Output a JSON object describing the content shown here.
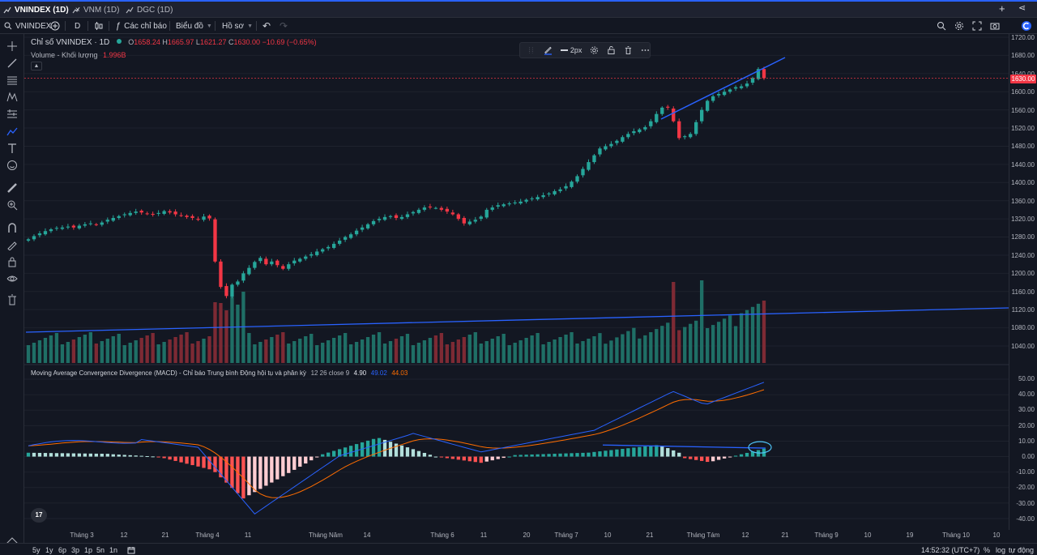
{
  "tabs": [
    {
      "label": "VNINDEX (1D)",
      "active": true
    },
    {
      "label": "VNM (1D)",
      "active": false
    },
    {
      "label": "DGC (1D)",
      "active": false
    }
  ],
  "toolbar": {
    "symbol": "VNINDEX",
    "interval": "D",
    "indicators_label": "Các chỉ báo",
    "chart_label": "Biểu đồ",
    "profile_label": "Hồ sơ"
  },
  "legend": {
    "title": "Chỉ số VNINDEX · 1D",
    "open_key": "O",
    "open": "1658.24",
    "high_key": "H",
    "high": "1665.97",
    "low_key": "L",
    "low": "1621.27",
    "close_key": "C",
    "close": "1630.00",
    "change": "−10.69 (−0.65%)",
    "volume_label": "Volume - Khối lượng",
    "volume_value": "1.996B"
  },
  "macd": {
    "label": "Moving Average Convergence Divergence (MACD) - Chỉ báo Trung bình Động hội tụ và phân kỳ",
    "params": "12 26 close 9",
    "hist": "4.90",
    "macd": "49.02",
    "signal": "44.03"
  },
  "floatbar": {
    "width_label": "2px"
  },
  "price_axis": {
    "ticks": [
      "1720.00",
      "1680.00",
      "1640.00",
      "1600.00",
      "1560.00",
      "1520.00",
      "1480.00",
      "1440.00",
      "1400.00",
      "1360.00",
      "1320.00",
      "1280.00",
      "1240.00",
      "1200.00",
      "1160.00",
      "1120.00",
      "1080.00",
      "1040.00"
    ],
    "last_price": "1630.00"
  },
  "macd_axis": {
    "ticks": [
      "50.00",
      "40.00",
      "30.00",
      "20.00",
      "10.00",
      "0.00",
      "-10.00",
      "-20.00",
      "-30.00",
      "-40.00"
    ]
  },
  "time_axis": {
    "ticks": [
      "Tháng 3",
      "12",
      "21",
      "Tháng 4",
      "11",
      "Tháng Năm",
      "14",
      "Tháng 6",
      "11",
      "20",
      "Tháng 7",
      "10",
      "21",
      "Tháng Tám",
      "12",
      "21",
      "Tháng 9",
      "10",
      "19",
      "Tháng 10",
      "10"
    ]
  },
  "bottom": {
    "ranges": [
      "5y",
      "1y",
      "6p",
      "3p",
      "1p",
      "5n",
      "1n"
    ],
    "clock": "14:52:32 (UTC+7)",
    "percent": "%",
    "log": "log",
    "auto": "tự động"
  },
  "colors": {
    "up": "#26a69a",
    "down": "#f23645",
    "up_vol": "#1f6f66",
    "down_vol": "#7d2a34",
    "macd_line": "#2962ff",
    "signal_line": "#ff6d00",
    "trend": "#2962ff"
  },
  "chart_data": {
    "type": "candlestick",
    "symbol": "VNINDEX",
    "interval": "1D",
    "price_range": [
      1030,
      1725
    ],
    "approx_closes": [
      1275,
      1282,
      1288,
      1293,
      1297,
      1300,
      1301,
      1303,
      1301,
      1305,
      1308,
      1310,
      1307,
      1312,
      1318,
      1322,
      1326,
      1330,
      1333,
      1336,
      1334,
      1331,
      1329,
      1333,
      1337,
      1334,
      1330,
      1327,
      1324,
      1322,
      1318,
      1325,
      1321,
      1226,
      1170,
      1150,
      1175,
      1182,
      1200,
      1212,
      1225,
      1234,
      1220,
      1226,
      1218,
      1210,
      1220,
      1228,
      1232,
      1237,
      1242,
      1248,
      1253,
      1258,
      1265,
      1272,
      1280,
      1286,
      1294,
      1301,
      1308,
      1315,
      1320,
      1324,
      1326,
      1322,
      1324,
      1330,
      1335,
      1340,
      1345,
      1346,
      1344,
      1340,
      1336,
      1330,
      1320,
      1310,
      1314,
      1318,
      1325,
      1340,
      1345,
      1350,
      1352,
      1354,
      1356,
      1358,
      1362,
      1365,
      1368,
      1372,
      1376,
      1381,
      1385,
      1392,
      1402,
      1414,
      1430,
      1445,
      1460,
      1475,
      1480,
      1485,
      1492,
      1500,
      1507,
      1513,
      1517,
      1522,
      1535,
      1551,
      1565,
      1565,
      1535,
      1498,
      1502,
      1507,
      1533,
      1560,
      1580,
      1590,
      1595,
      1600,
      1605,
      1610,
      1612,
      1618,
      1630,
      1650,
      1630
    ],
    "volume_trend": "rising volume with spikes in early April and late July–August",
    "macd_range": [
      -40,
      50
    ],
    "annotations": [
      "rising trendline across recent highs",
      "horizontal volume trendline",
      "flat trendline over MACD histogram with circled last bar"
    ]
  }
}
